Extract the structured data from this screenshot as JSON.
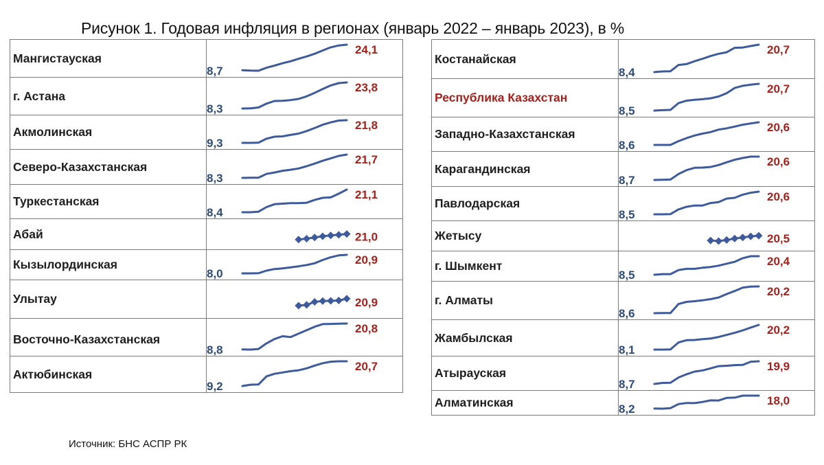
{
  "title": "Рисунок 1. Годовая инфляция в регионах (январь 2022 – январь 2023), в %",
  "source": "Источник:  БНС АСПР  РК",
  "colors": {
    "line": "#3d5a9c",
    "start_label": "#2d4b78",
    "end_label": "#a8201a",
    "highlight_name": "#a8201a"
  },
  "chart_data": {
    "type": "table",
    "title": "Рисунок 1. Годовая инфляция в регионах (январь 2022 – январь 2023), в %",
    "tables": [
      {
        "rows": [
          {
            "name": "Мангистауская",
            "start": "8,7",
            "end": "24,1",
            "values": [
              8.7,
              8.5,
              8.4,
              10.2,
              11.5,
              12.9,
              14.1,
              15.6,
              17.0,
              18.6,
              20.6,
              22.5,
              23.6,
              24.1
            ]
          },
          {
            "name": "г. Астана",
            "start": "8,3",
            "end": "23,8",
            "values": [
              8.3,
              8.4,
              8.9,
              11.2,
              12.8,
              12.9,
              13.3,
              14.0,
              15.5,
              17.6,
              19.9,
              22.0,
              23.4,
              23.8
            ]
          },
          {
            "name": "Акмолинская",
            "start": "9,3",
            "end": "21,8",
            "values": [
              9.3,
              9.3,
              9.4,
              11.6,
              12.7,
              12.9,
              13.7,
              14.4,
              15.8,
              17.5,
              19.3,
              20.6,
              21.6,
              21.8
            ]
          },
          {
            "name": "Северо-Казахстанская",
            "start": "8,3",
            "end": "21,7",
            "values": [
              8.3,
              8.4,
              8.4,
              10.6,
              11.4,
              12.4,
              13.0,
              13.7,
              15.0,
              16.5,
              18.1,
              19.5,
              20.9,
              21.7
            ]
          },
          {
            "name": "Туркестанская",
            "start": "8,4",
            "end": "21,1",
            "values": [
              8.4,
              8.4,
              8.7,
              11.3,
              12.9,
              13.2,
              13.5,
              13.5,
              13.7,
              15.3,
              16.5,
              16.7,
              18.8,
              21.1
            ]
          },
          {
            "name": "Абай",
            "start": "",
            "end": "21,0",
            "marker": "diamond",
            "values": [
              null,
              null,
              null,
              null,
              null,
              null,
              null,
              15.0,
              15.9,
              17.2,
              18.5,
              19.4,
              20.1,
              21.0
            ]
          },
          {
            "name": "Кызылординская",
            "start": "8,0",
            "end": "20,9",
            "values": [
              8.0,
              8.0,
              8.1,
              9.9,
              11.0,
              11.5,
              12.2,
              12.9,
              13.8,
              15.0,
              17.3,
              19.2,
              20.5,
              20.9
            ]
          },
          {
            "name": "Улытау",
            "start": "",
            "end": "20,9",
            "marker": "diamond",
            "values": [
              null,
              null,
              null,
              null,
              null,
              null,
              null,
              13.5,
              14.3,
              17.5,
              18.4,
              18.6,
              19.0,
              20.9
            ]
          },
          {
            "name": "Восточно-Казахстанская",
            "start": "8,8",
            "end": "20,8",
            "values": [
              8.8,
              8.7,
              9.0,
              11.6,
              13.6,
              14.9,
              14.5,
              16.1,
              17.7,
              19.3,
              20.5,
              20.6,
              20.7,
              20.8
            ]
          },
          {
            "name": "Актюбинская",
            "start": "9,2",
            "end": "20,7",
            "values": [
              9.2,
              9.8,
              9.9,
              13.7,
              14.9,
              15.5,
              16.1,
              16.5,
              17.4,
              18.7,
              19.8,
              20.5,
              20.7,
              20.7
            ]
          }
        ]
      },
      {
        "rows": [
          {
            "name": "Костанайская",
            "start": "8,4",
            "end": "20,7",
            "values": [
              8.4,
              8.7,
              8.8,
              11.6,
              12.0,
              13.3,
              14.4,
              15.6,
              16.6,
              17.3,
              19.3,
              19.4,
              20.1,
              20.7
            ]
          },
          {
            "name": "Республика Казахстан",
            "highlight": true,
            "start": "8,5",
            "end": "20,7",
            "values": [
              8.5,
              8.7,
              8.8,
              11.9,
              13.0,
              13.4,
              13.7,
              14.1,
              14.9,
              16.4,
              18.8,
              19.8,
              20.3,
              20.7
            ]
          },
          {
            "name": "Западно-Казахстанская",
            "start": "8,6",
            "end": "20,6",
            "values": [
              8.6,
              8.6,
              8.6,
              10.6,
              12.2,
              13.6,
              14.6,
              15.4,
              16.7,
              17.4,
              18.3,
              19.3,
              20.0,
              20.6
            ]
          },
          {
            "name": "Карагандинская",
            "start": "8,7",
            "end": "20,6",
            "values": [
              8.7,
              8.8,
              8.9,
              11.7,
              13.7,
              14.9,
              15.0,
              15.3,
              16.3,
              17.7,
              19.0,
              19.9,
              20.6,
              20.6
            ]
          },
          {
            "name": "Павлодарская",
            "start": "8,5",
            "end": "20,6",
            "values": [
              8.5,
              8.5,
              8.6,
              11.1,
              12.5,
              13.2,
              13.2,
              14.5,
              15.0,
              16.9,
              17.3,
              19.0,
              20.0,
              20.6
            ]
          },
          {
            "name": "Жетысу",
            "start": "",
            "end": "20,5",
            "marker": "diamond",
            "values": [
              null,
              null,
              null,
              null,
              null,
              null,
              null,
              15.5,
              14.8,
              16.0,
              17.5,
              18.6,
              19.8,
              20.5
            ]
          },
          {
            "name": "г. Шымкент",
            "start": "8,5",
            "end": "20,4",
            "values": [
              8.5,
              8.9,
              8.9,
              11.5,
              12.3,
              12.3,
              13.0,
              13.5,
              14.3,
              15.6,
              16.8,
              19.1,
              20.4,
              20.4
            ]
          },
          {
            "name": "г. Алматы",
            "start": "8,6",
            "end": "20,2",
            "values": [
              8.6,
              8.7,
              8.7,
              12.6,
              13.5,
              13.8,
              14.2,
              14.7,
              15.4,
              16.9,
              18.2,
              19.7,
              20.1,
              20.2
            ]
          },
          {
            "name": "Жамбылская",
            "start": "8,1",
            "end": "20,2",
            "values": [
              8.1,
              8.1,
              8.2,
              11.6,
              12.7,
              12.8,
              13.2,
              13.5,
              14.3,
              15.3,
              16.3,
              17.5,
              18.9,
              20.2
            ]
          },
          {
            "name": "Атырауская",
            "start": "8,7",
            "end": "19,9",
            "values": [
              8.7,
              9.2,
              9.3,
              11.9,
              13.5,
              14.8,
              15.4,
              16.4,
              17.5,
              17.7,
              18.0,
              18.1,
              19.7,
              19.9
            ]
          },
          {
            "name": "Алматинская",
            "start": "8,2",
            "end": "18,0",
            "values": [
              8.2,
              8.1,
              8.5,
              11.6,
              12.4,
              12.3,
              13.2,
              14.4,
              14.3,
              16.3,
              16.5,
              18.0,
              18.0,
              18.0
            ]
          }
        ]
      }
    ],
    "x_points": 14
  }
}
